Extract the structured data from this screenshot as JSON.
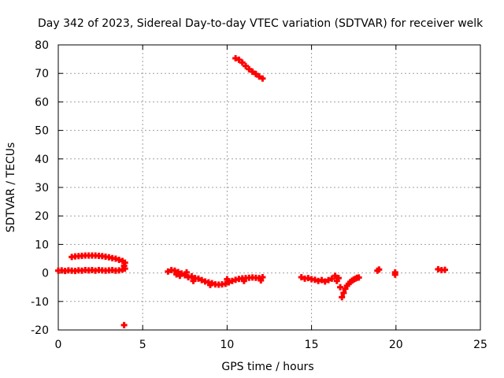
{
  "chart_data": {
    "type": "scatter",
    "title": "Day 342 of 2023, Sidereal Day-to-day VTEC variation (SDTVAR) for receiver welk",
    "xlabel": "GPS time / hours",
    "ylabel": "SDTVAR / TECUs",
    "xlim": [
      0,
      25
    ],
    "ylim": [
      -20,
      80
    ],
    "xticks": [
      0,
      5,
      10,
      15,
      20,
      25
    ],
    "yticks": [
      -20,
      -10,
      0,
      10,
      20,
      30,
      40,
      50,
      60,
      70,
      80
    ],
    "xtick_labels": [
      "0",
      "5",
      "10",
      "15",
      "20",
      "25"
    ],
    "ytick_labels": [
      "-20",
      "-10",
      "0",
      "10",
      "20",
      "30",
      "40",
      "50",
      "60",
      "70",
      "80"
    ],
    "grid": true,
    "marker": "plus",
    "color": "#ff0000",
    "series": [
      {
        "points": [
          [
            0.0,
            0.8
          ],
          [
            0.2,
            0.9
          ],
          [
            0.4,
            0.7
          ],
          [
            0.6,
            0.9
          ],
          [
            0.8,
            0.8
          ],
          [
            1.0,
            0.7
          ],
          [
            1.2,
            0.9
          ],
          [
            1.4,
            0.8
          ],
          [
            1.6,
            1.0
          ],
          [
            1.8,
            0.9
          ],
          [
            2.0,
            1.0
          ],
          [
            2.2,
            0.8
          ],
          [
            2.4,
            1.0
          ],
          [
            2.6,
            0.9
          ],
          [
            2.8,
            0.8
          ],
          [
            3.0,
            0.9
          ],
          [
            3.2,
            1.0
          ],
          [
            3.4,
            0.8
          ],
          [
            3.6,
            0.9
          ],
          [
            3.8,
            1.2
          ],
          [
            3.95,
            1.5
          ],
          [
            0.8,
            5.6
          ],
          [
            1.0,
            5.8
          ],
          [
            1.2,
            5.9
          ],
          [
            1.4,
            6.0
          ],
          [
            1.6,
            6.1
          ],
          [
            1.8,
            6.1
          ],
          [
            2.0,
            6.1
          ],
          [
            2.2,
            6.1
          ],
          [
            2.4,
            6.0
          ],
          [
            2.6,
            5.9
          ],
          [
            2.8,
            5.7
          ],
          [
            3.0,
            5.5
          ],
          [
            3.2,
            5.2
          ],
          [
            3.4,
            5.0
          ],
          [
            3.6,
            4.6
          ],
          [
            3.8,
            4.2
          ],
          [
            3.95,
            3.6
          ],
          [
            3.9,
            2.5
          ],
          [
            3.9,
            -18.3
          ],
          [
            6.5,
            0.5
          ],
          [
            6.7,
            1.0
          ],
          [
            6.9,
            0.8
          ],
          [
            7.1,
            0.3
          ],
          [
            7.3,
            -0.2
          ],
          [
            7.5,
            -0.8
          ],
          [
            7.6,
            0.2
          ],
          [
            7.7,
            -1.5
          ],
          [
            7.9,
            -1.2
          ],
          [
            8.1,
            -1.8
          ],
          [
            8.3,
            -2.0
          ],
          [
            8.5,
            -2.5
          ],
          [
            8.7,
            -3.0
          ],
          [
            8.9,
            -3.3
          ],
          [
            9.1,
            -3.6
          ],
          [
            9.3,
            -4.0
          ],
          [
            9.5,
            -4.1
          ],
          [
            9.7,
            -4.0
          ],
          [
            9.9,
            -3.8
          ],
          [
            10.1,
            -3.3
          ],
          [
            10.3,
            -2.8
          ],
          [
            10.5,
            -2.4
          ],
          [
            10.7,
            -2.1
          ],
          [
            10.9,
            -1.9
          ],
          [
            11.1,
            -1.8
          ],
          [
            11.3,
            -1.7
          ],
          [
            11.5,
            -1.6
          ],
          [
            11.7,
            -1.7
          ],
          [
            11.9,
            -1.8
          ],
          [
            12.1,
            -1.5
          ],
          [
            7.0,
            -0.5
          ],
          [
            7.2,
            -1.0
          ],
          [
            8.0,
            -2.8
          ],
          [
            9.0,
            -4.2
          ],
          [
            10.0,
            -2.2
          ],
          [
            11.0,
            -2.8
          ],
          [
            12.0,
            -2.6
          ],
          [
            10.5,
            75.3
          ],
          [
            10.7,
            74.8
          ],
          [
            10.9,
            73.8
          ],
          [
            11.1,
            72.6
          ],
          [
            11.3,
            71.5
          ],
          [
            11.5,
            70.6
          ],
          [
            11.7,
            69.8
          ],
          [
            11.9,
            68.9
          ],
          [
            12.1,
            68.2
          ],
          [
            14.4,
            -1.5
          ],
          [
            14.6,
            -2.0
          ],
          [
            14.8,
            -1.8
          ],
          [
            15.0,
            -2.2
          ],
          [
            15.2,
            -2.4
          ],
          [
            15.4,
            -2.8
          ],
          [
            15.6,
            -2.5
          ],
          [
            15.8,
            -3.0
          ],
          [
            16.0,
            -2.5
          ],
          [
            16.2,
            -2.0
          ],
          [
            16.4,
            -1.0
          ],
          [
            16.5,
            -2.8
          ],
          [
            16.6,
            -1.8
          ],
          [
            16.7,
            -5.0
          ],
          [
            16.8,
            -8.5
          ],
          [
            16.9,
            -7.0
          ],
          [
            17.0,
            -5.5
          ],
          [
            17.1,
            -4.5
          ],
          [
            17.2,
            -3.8
          ],
          [
            17.3,
            -3.2
          ],
          [
            17.4,
            -2.7
          ],
          [
            17.5,
            -2.3
          ],
          [
            17.6,
            -2.0
          ],
          [
            17.7,
            -1.7
          ],
          [
            17.8,
            -1.6
          ],
          [
            19.0,
            1.2
          ],
          [
            18.9,
            0.8
          ],
          [
            19.95,
            0.2
          ],
          [
            19.95,
            -0.6
          ],
          [
            22.5,
            1.3
          ],
          [
            22.7,
            1.0
          ],
          [
            22.9,
            1.1
          ]
        ]
      }
    ]
  }
}
